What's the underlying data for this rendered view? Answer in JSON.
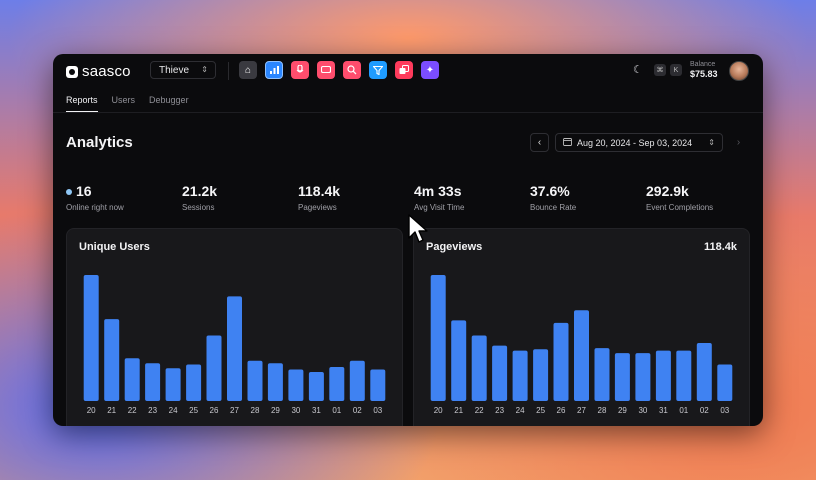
{
  "app": {
    "logo_text": "saasco",
    "workspace": "Thieve"
  },
  "toolbar": {
    "apps": [
      "home-icon",
      "bar-chart-icon",
      "mic-icon",
      "chat-icon",
      "search-user-icon",
      "funnel-icon",
      "layers-icon",
      "sparkle-icon"
    ],
    "kbd": [
      "⌘",
      "K"
    ],
    "balance_label": "Balance",
    "balance_value": "$75.83"
  },
  "tabs": [
    {
      "label": "Reports",
      "active": true
    },
    {
      "label": "Users",
      "active": false
    },
    {
      "label": "Debugger",
      "active": false
    }
  ],
  "page": {
    "title": "Analytics",
    "date_range": "Aug 20, 2024 - Sep 03, 2024"
  },
  "stats": [
    {
      "value": "16",
      "label": "Online right now"
    },
    {
      "value": "21.2k",
      "label": "Sessions"
    },
    {
      "value": "118.4k",
      "label": "Pageviews"
    },
    {
      "value": "4m 33s",
      "label": "Avg Visit Time"
    },
    {
      "value": "37.6%",
      "label": "Bounce Rate"
    },
    {
      "value": "292.9k",
      "label": "Event Completions"
    }
  ],
  "colors": {
    "bar": "#3f82f2",
    "accent_dot": "#8fc7f5"
  },
  "chart_data": [
    {
      "type": "bar",
      "title": "Unique Users",
      "headline": "",
      "categories": [
        "20",
        "21",
        "22",
        "23",
        "24",
        "25",
        "26",
        "27",
        "28",
        "29",
        "30",
        "31",
        "01",
        "02",
        "03"
      ],
      "values": [
        100,
        65,
        34,
        30,
        26,
        29,
        52,
        83,
        32,
        30,
        25,
        23,
        27,
        32,
        25
      ],
      "ylim": [
        0,
        100
      ],
      "grid": false
    },
    {
      "type": "bar",
      "title": "Pageviews",
      "headline": "118.4k",
      "categories": [
        "20",
        "21",
        "22",
        "23",
        "24",
        "25",
        "26",
        "27",
        "28",
        "29",
        "30",
        "31",
        "01",
        "02",
        "03"
      ],
      "values": [
        100,
        64,
        52,
        44,
        40,
        41,
        62,
        72,
        42,
        38,
        38,
        40,
        40,
        46,
        29
      ],
      "ylim": [
        0,
        100
      ],
      "grid": false
    }
  ]
}
